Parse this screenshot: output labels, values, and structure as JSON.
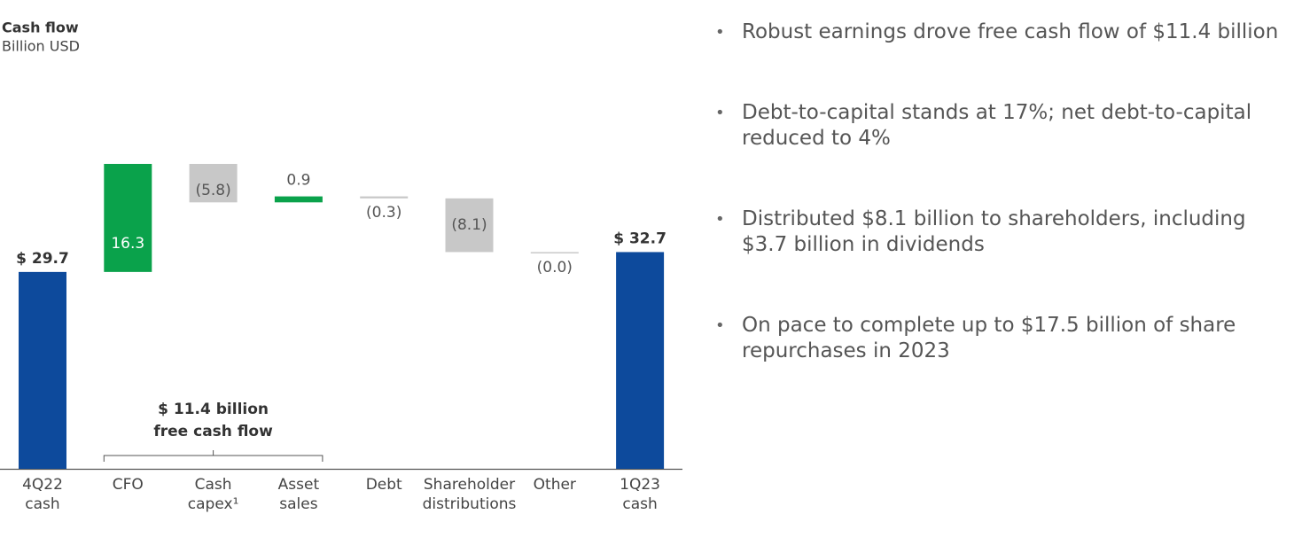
{
  "chart_data": {
    "type": "waterfall",
    "title": "Cash flow",
    "subtitle": "Billion USD",
    "categories": [
      [
        "4Q22",
        "cash"
      ],
      [
        "CFO"
      ],
      [
        "Cash",
        "capex¹"
      ],
      [
        "Asset",
        "sales"
      ],
      [
        "Debt"
      ],
      [
        "Shareholder",
        "distributions"
      ],
      [
        "Other"
      ],
      [
        "1Q23",
        "cash"
      ]
    ],
    "measures": [
      "total",
      "relative",
      "relative",
      "relative",
      "relative",
      "relative",
      "relative",
      "total"
    ],
    "values": [
      29.7,
      16.3,
      -5.8,
      0.9,
      -0.3,
      -8.1,
      0.0,
      32.7
    ],
    "value_labels": [
      "$ 29.7",
      "16.3",
      "(5.8)",
      "0.9",
      "(0.3)",
      "(8.1)",
      "(0.0)",
      "$ 32.7"
    ],
    "colors": {
      "total": "#0d4a9c",
      "increase": "#0aa24b",
      "decrease": "#c8c8c8"
    },
    "ylim": [
      0,
      48
    ],
    "annotation": [
      "$ 11.4 billion",
      "free cash flow"
    ]
  },
  "bullets": [
    [
      "Robust earnings drove free cash flow of $11.4 billion"
    ],
    [
      "Debt-to-capital stands at 17%; net debt-to-capital",
      "reduced to 4%"
    ],
    [
      "Distributed $8.1 billion to shareholders, including",
      "$3.7 billion in dividends"
    ],
    [
      "On pace to complete up to $17.5 billion of share",
      "repurchases in 2023"
    ]
  ]
}
